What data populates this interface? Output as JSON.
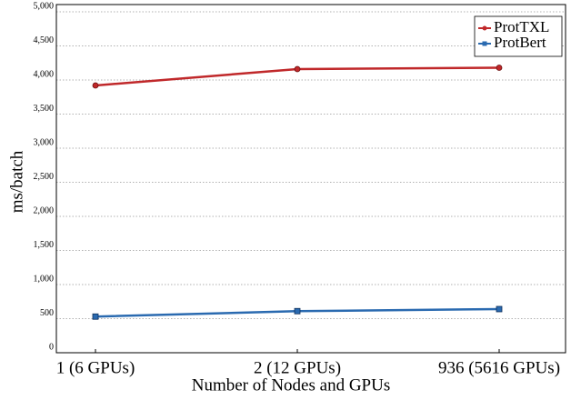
{
  "chart_data": {
    "type": "line",
    "x_label": "Number of Nodes and GPUs",
    "y_label": "ms/batch",
    "categories": [
      "1 (6 GPUs)",
      "2 (12 GPUs)",
      "936 (5616 GPUs)"
    ],
    "series": [
      {
        "name": "ProtTXL",
        "color": "#c0282a",
        "values": [
          3920,
          4160,
          4180
        ]
      },
      {
        "name": "ProtBert",
        "color": "#2a6ab0",
        "values": [
          530,
          610,
          640
        ]
      }
    ],
    "ylim": [
      0,
      5000
    ],
    "yticks": [
      0,
      500,
      {
        "value": 1000,
        "label": "1,000"
      },
      {
        "value": 1500,
        "label": "1,500"
      },
      {
        "value": 2000,
        "label": "2,000"
      },
      {
        "value": 2500,
        "label": "2,500"
      },
      {
        "value": 3000,
        "label": "3,000"
      },
      {
        "value": 3500,
        "label": "3,500"
      },
      {
        "value": 4000,
        "label": "4,000"
      },
      {
        "value": 4500,
        "label": "4,500"
      },
      {
        "value": 5000,
        "label": "5,000"
      }
    ],
    "grid": true,
    "legend": "upper right"
  }
}
